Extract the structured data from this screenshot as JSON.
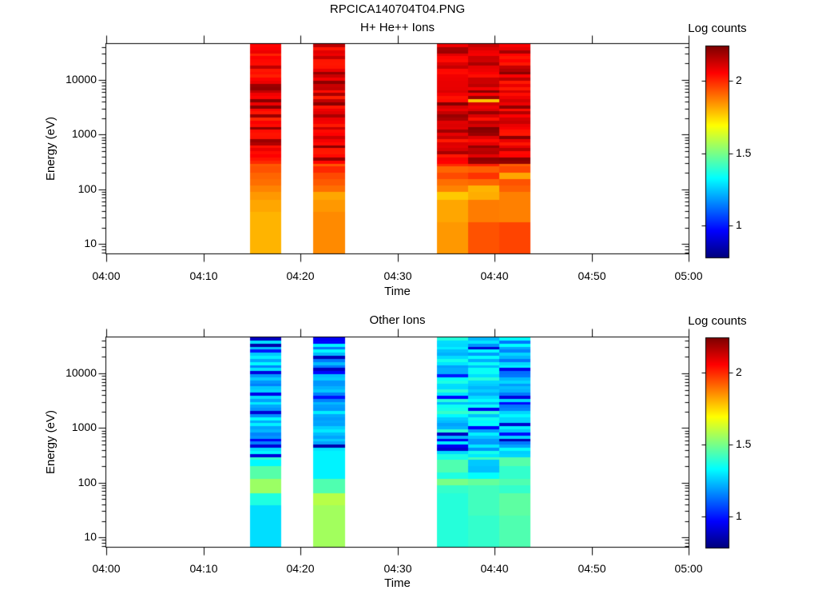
{
  "title": "RPCICA140704T04.PNG",
  "chart_data": [
    {
      "type": "heatmap",
      "title": "H+ He++ Ions",
      "xlabel": "Time",
      "ylabel": "Energy (eV)",
      "x_ticks": [
        "04:00",
        "04:10",
        "04:20",
        "04:30",
        "04:40",
        "04:50",
        "05:00"
      ],
      "x_tick_minutes": [
        0,
        10,
        20,
        30,
        40,
        50,
        60
      ],
      "x_range_minutes": [
        0,
        60
      ],
      "y_tick_labels": [
        "10000",
        "1000",
        "100",
        "10"
      ],
      "y_tick_values": [
        10000,
        1000,
        100,
        10
      ],
      "y_range_ev": [
        6.7,
        45600
      ],
      "y_scale": "log",
      "colorbar": {
        "label": "Log counts",
        "tick_labels": [
          "2",
          "1.5",
          "1"
        ],
        "tick_values": [
          2,
          1.5,
          1
        ],
        "range": [
          0.78,
          2.24
        ],
        "colormap": "jet"
      },
      "noise": {
        "amp": 0.05,
        "spike_p": 0.32,
        "spike_range": [
          2.13,
          2.245
        ],
        "spike_emin": 300
      },
      "columns": [
        {
          "t0": 14.85,
          "t1": 18.05,
          "seed": 11,
          "noise_emin": 160,
          "profile": [
            [
              45600,
              300,
              2.05
            ],
            [
              300,
              160,
              1.95
            ],
            [
              160,
              117,
              1.9
            ],
            [
              117,
              89,
              1.87
            ],
            [
              89,
              63,
              1.84
            ],
            [
              63,
              38,
              1.82
            ],
            [
              38,
              6.7,
              1.8
            ]
          ]
        },
        {
          "t0": 21.35,
          "t1": 24.6,
          "seed": 22,
          "noise_emin": 160,
          "profile": [
            [
              45600,
              300,
              2.06
            ],
            [
              300,
              160,
              1.96
            ],
            [
              160,
              117,
              1.93
            ],
            [
              117,
              89,
              1.9
            ],
            [
              89,
              63,
              1.82
            ],
            [
              63,
              31,
              1.84
            ],
            [
              31,
              6.7,
              1.86
            ]
          ]
        },
        {
          "t0": 34.05,
          "t1": 37.25,
          "seed": 33,
          "noise_emin": 160,
          "profile": [
            [
              45600,
              300,
              2.07
            ],
            [
              300,
              160,
              1.96
            ],
            [
              160,
              117,
              1.9
            ],
            [
              117,
              89,
              1.87
            ],
            [
              89,
              59,
              1.77
            ],
            [
              59,
              25,
              1.82
            ],
            [
              25,
              6.7,
              1.84
            ]
          ]
        },
        {
          "t0": 37.25,
          "t1": 40.5,
          "seed": 44,
          "noise_emin": 160,
          "overrides": [
            [
              4600,
              3800,
              1.78
            ]
          ],
          "profile": [
            [
              45600,
              300,
              2.08
            ],
            [
              300,
              160,
              1.97
            ],
            [
              160,
              117,
              1.91
            ],
            [
              117,
              89,
              1.8
            ],
            [
              89,
              59,
              1.81
            ],
            [
              59,
              25,
              1.88
            ],
            [
              25,
              6.7,
              1.94
            ]
          ]
        },
        {
          "t0": 40.5,
          "t1": 43.7,
          "seed": 55,
          "noise_emin": 200,
          "profile": [
            [
              45600,
              300,
              2.07
            ],
            [
              300,
              200,
              1.97
            ],
            [
              200,
              165,
              1.82
            ],
            [
              165,
              117,
              1.94
            ],
            [
              117,
              89,
              1.92
            ],
            [
              89,
              25,
              1.875
            ],
            [
              25,
              6.7,
              1.96
            ]
          ]
        }
      ]
    },
    {
      "type": "heatmap",
      "title": "Other Ions",
      "xlabel": "Time",
      "ylabel": "Energy (eV)",
      "x_ticks": [
        "04:00",
        "04:10",
        "04:20",
        "04:30",
        "04:40",
        "04:50",
        "05:00"
      ],
      "x_tick_minutes": [
        0,
        10,
        20,
        30,
        40,
        50,
        60
      ],
      "x_range_minutes": [
        0,
        60
      ],
      "y_tick_labels": [
        "10000",
        "1000",
        "100",
        "10"
      ],
      "y_tick_values": [
        10000,
        1000,
        100,
        10
      ],
      "y_range_ev": [
        6.7,
        45600
      ],
      "y_scale": "log",
      "colorbar": {
        "label": "Log counts",
        "tick_labels": [
          "2",
          "1.5",
          "1"
        ],
        "tick_values": [
          2,
          1.5,
          1
        ],
        "range": [
          0.78,
          2.24
        ],
        "colormap": "jet"
      },
      "noise": {
        "amp": 0.11,
        "spike_p": 0.17,
        "spike_range": [
          0.84,
          1.0
        ],
        "spike_emin": 300
      },
      "columns": [
        {
          "t0": 14.85,
          "t1": 18.05,
          "seed": 66,
          "noise_emin": 250,
          "profile": [
            [
              45600,
              300,
              1.23
            ],
            [
              300,
              200,
              1.32
            ],
            [
              200,
              109,
              1.45
            ],
            [
              109,
              68,
              1.55
            ],
            [
              68,
              31,
              1.37
            ],
            [
              31,
              6.7,
              1.28
            ]
          ]
        },
        {
          "t0": 21.35,
          "t1": 24.6,
          "seed": 77,
          "noise_emin": 400,
          "profile": [
            [
              45600,
              450,
              1.23
            ],
            [
              450,
              113,
              1.31
            ],
            [
              113,
              68,
              1.44
            ],
            [
              68,
              31,
              1.59
            ],
            [
              31,
              6.7,
              1.56
            ]
          ]
        },
        {
          "t0": 34.05,
          "t1": 37.25,
          "seed": 88,
          "noise_emin": 300,
          "profile": [
            [
              45600,
              300,
              1.3
            ],
            [
              300,
              240,
              1.36
            ],
            [
              240,
              170,
              1.44
            ],
            [
              170,
              130,
              1.37
            ],
            [
              130,
              95,
              1.5
            ],
            [
              95,
              68,
              1.4
            ],
            [
              68,
              6.7,
              1.38
            ]
          ]
        },
        {
          "t0": 37.25,
          "t1": 40.5,
          "seed": 99,
          "noise_emin": 150,
          "profile": [
            [
              45600,
              300,
              1.28
            ],
            [
              300,
              105,
              1.33
            ],
            [
              105,
              80,
              1.47
            ],
            [
              80,
              29,
              1.42
            ],
            [
              29,
              6.7,
              1.4
            ]
          ]
        },
        {
          "t0": 40.5,
          "t1": 43.7,
          "seed": 111,
          "noise_emin": 300,
          "profile": [
            [
              45600,
              450,
              1.22
            ],
            [
              450,
              290,
              1.36
            ],
            [
              290,
              210,
              1.45
            ],
            [
              210,
              130,
              1.4
            ],
            [
              130,
              95,
              1.44
            ],
            [
              95,
              63,
              1.4
            ],
            [
              63,
              29,
              1.46
            ],
            [
              29,
              6.7,
              1.44
            ]
          ]
        }
      ]
    }
  ]
}
